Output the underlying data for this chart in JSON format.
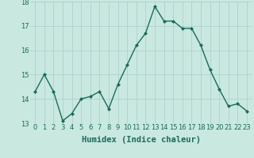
{
  "xlabel": "Humidex (Indice chaleur)",
  "ylabel": "",
  "x": [
    0,
    1,
    2,
    3,
    4,
    5,
    6,
    7,
    8,
    9,
    10,
    11,
    12,
    13,
    14,
    15,
    16,
    17,
    18,
    19,
    20,
    21,
    22,
    23
  ],
  "y": [
    14.3,
    15.0,
    14.3,
    13.1,
    13.4,
    14.0,
    14.1,
    14.3,
    13.6,
    14.6,
    15.4,
    16.2,
    16.7,
    17.8,
    17.2,
    17.2,
    16.9,
    16.9,
    16.2,
    15.2,
    14.4,
    13.7,
    13.8,
    13.5
  ],
  "line_color": "#1a6b5a",
  "marker": "D",
  "marker_size": 2.0,
  "background_color": "#c8e8e0",
  "grid_color": "#aacccc",
  "ylim": [
    13,
    18
  ],
  "yticks": [
    13,
    14,
    15,
    16,
    17,
    18
  ],
  "xticks": [
    0,
    1,
    2,
    3,
    4,
    5,
    6,
    7,
    8,
    9,
    10,
    11,
    12,
    13,
    14,
    15,
    16,
    17,
    18,
    19,
    20,
    21,
    22,
    23
  ],
  "tick_color": "#1a6b5a",
  "tick_fontsize": 6.0,
  "xlabel_fontsize": 7.5,
  "line_width": 1.0
}
